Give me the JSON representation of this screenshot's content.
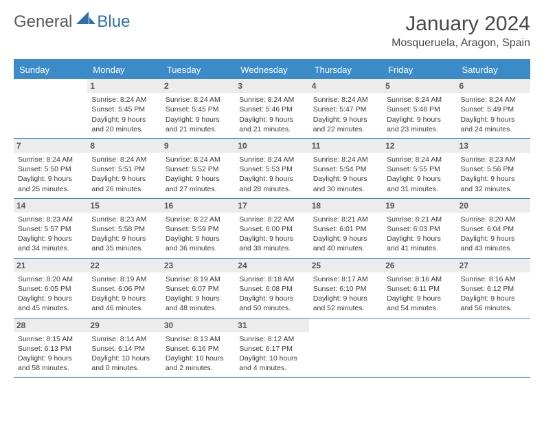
{
  "logo": {
    "text1": "General",
    "text2": "Blue"
  },
  "title": {
    "month": "January 2024",
    "location": "Mosqueruela, Aragon, Spain"
  },
  "colors": {
    "header_bg": "#3b8bc9",
    "header_text": "#ffffff",
    "daynum_bg": "#ececec",
    "body_text": "#3a3a3a",
    "logo_gray": "#5a5a5a",
    "logo_blue": "#2f6fb0"
  },
  "days_of_week": [
    "Sunday",
    "Monday",
    "Tuesday",
    "Wednesday",
    "Thursday",
    "Friday",
    "Saturday"
  ],
  "weeks": [
    [
      {
        "num": "",
        "sunrise": "",
        "sunset": "",
        "daylight": ""
      },
      {
        "num": "1",
        "sunrise": "8:24 AM",
        "sunset": "5:45 PM",
        "daylight": "9 hours and 20 minutes."
      },
      {
        "num": "2",
        "sunrise": "8:24 AM",
        "sunset": "5:45 PM",
        "daylight": "9 hours and 21 minutes."
      },
      {
        "num": "3",
        "sunrise": "8:24 AM",
        "sunset": "5:46 PM",
        "daylight": "9 hours and 21 minutes."
      },
      {
        "num": "4",
        "sunrise": "8:24 AM",
        "sunset": "5:47 PM",
        "daylight": "9 hours and 22 minutes."
      },
      {
        "num": "5",
        "sunrise": "8:24 AM",
        "sunset": "5:48 PM",
        "daylight": "9 hours and 23 minutes."
      },
      {
        "num": "6",
        "sunrise": "8:24 AM",
        "sunset": "5:49 PM",
        "daylight": "9 hours and 24 minutes."
      }
    ],
    [
      {
        "num": "7",
        "sunrise": "8:24 AM",
        "sunset": "5:50 PM",
        "daylight": "9 hours and 25 minutes."
      },
      {
        "num": "8",
        "sunrise": "8:24 AM",
        "sunset": "5:51 PM",
        "daylight": "9 hours and 26 minutes."
      },
      {
        "num": "9",
        "sunrise": "8:24 AM",
        "sunset": "5:52 PM",
        "daylight": "9 hours and 27 minutes."
      },
      {
        "num": "10",
        "sunrise": "8:24 AM",
        "sunset": "5:53 PM",
        "daylight": "9 hours and 28 minutes."
      },
      {
        "num": "11",
        "sunrise": "8:24 AM",
        "sunset": "5:54 PM",
        "daylight": "9 hours and 30 minutes."
      },
      {
        "num": "12",
        "sunrise": "8:24 AM",
        "sunset": "5:55 PM",
        "daylight": "9 hours and 31 minutes."
      },
      {
        "num": "13",
        "sunrise": "8:23 AM",
        "sunset": "5:56 PM",
        "daylight": "9 hours and 32 minutes."
      }
    ],
    [
      {
        "num": "14",
        "sunrise": "8:23 AM",
        "sunset": "5:57 PM",
        "daylight": "9 hours and 34 minutes."
      },
      {
        "num": "15",
        "sunrise": "8:23 AM",
        "sunset": "5:58 PM",
        "daylight": "9 hours and 35 minutes."
      },
      {
        "num": "16",
        "sunrise": "8:22 AM",
        "sunset": "5:59 PM",
        "daylight": "9 hours and 36 minutes."
      },
      {
        "num": "17",
        "sunrise": "8:22 AM",
        "sunset": "6:00 PM",
        "daylight": "9 hours and 38 minutes."
      },
      {
        "num": "18",
        "sunrise": "8:21 AM",
        "sunset": "6:01 PM",
        "daylight": "9 hours and 40 minutes."
      },
      {
        "num": "19",
        "sunrise": "8:21 AM",
        "sunset": "6:03 PM",
        "daylight": "9 hours and 41 minutes."
      },
      {
        "num": "20",
        "sunrise": "8:20 AM",
        "sunset": "6:04 PM",
        "daylight": "9 hours and 43 minutes."
      }
    ],
    [
      {
        "num": "21",
        "sunrise": "8:20 AM",
        "sunset": "6:05 PM",
        "daylight": "9 hours and 45 minutes."
      },
      {
        "num": "22",
        "sunrise": "8:19 AM",
        "sunset": "6:06 PM",
        "daylight": "9 hours and 46 minutes."
      },
      {
        "num": "23",
        "sunrise": "8:19 AM",
        "sunset": "6:07 PM",
        "daylight": "9 hours and 48 minutes."
      },
      {
        "num": "24",
        "sunrise": "8:18 AM",
        "sunset": "6:08 PM",
        "daylight": "9 hours and 50 minutes."
      },
      {
        "num": "25",
        "sunrise": "8:17 AM",
        "sunset": "6:10 PM",
        "daylight": "9 hours and 52 minutes."
      },
      {
        "num": "26",
        "sunrise": "8:16 AM",
        "sunset": "6:11 PM",
        "daylight": "9 hours and 54 minutes."
      },
      {
        "num": "27",
        "sunrise": "8:16 AM",
        "sunset": "6:12 PM",
        "daylight": "9 hours and 56 minutes."
      }
    ],
    [
      {
        "num": "28",
        "sunrise": "8:15 AM",
        "sunset": "6:13 PM",
        "daylight": "9 hours and 58 minutes."
      },
      {
        "num": "29",
        "sunrise": "8:14 AM",
        "sunset": "6:14 PM",
        "daylight": "10 hours and 0 minutes."
      },
      {
        "num": "30",
        "sunrise": "8:13 AM",
        "sunset": "6:16 PM",
        "daylight": "10 hours and 2 minutes."
      },
      {
        "num": "31",
        "sunrise": "8:12 AM",
        "sunset": "6:17 PM",
        "daylight": "10 hours and 4 minutes."
      },
      {
        "num": "",
        "sunrise": "",
        "sunset": "",
        "daylight": ""
      },
      {
        "num": "",
        "sunrise": "",
        "sunset": "",
        "daylight": ""
      },
      {
        "num": "",
        "sunrise": "",
        "sunset": "",
        "daylight": ""
      }
    ]
  ],
  "labels": {
    "sunrise": "Sunrise: ",
    "sunset": "Sunset: ",
    "daylight": "Daylight: "
  }
}
